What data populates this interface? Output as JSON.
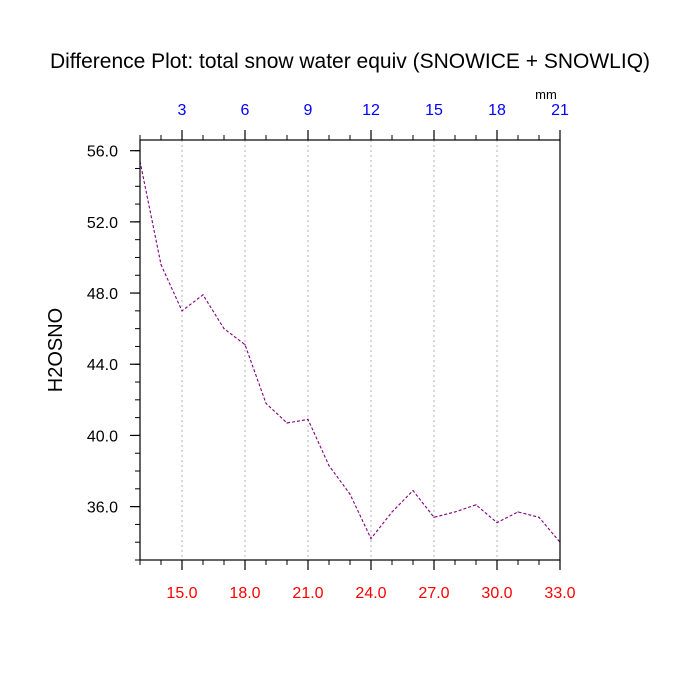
{
  "chart_data": {
    "type": "line",
    "title": "Difference Plot: total snow water equiv (SNOWICE + SNOWLIQ)",
    "ylabel": "H2OSNO",
    "top_axis_unit": "mm",
    "colors": {
      "line": "#800080",
      "bottom_ticks": "#ff0000",
      "top_ticks": "#0000ff",
      "grid": "#b0b0b0",
      "frame": "#000000"
    },
    "line_style": "dashed",
    "grid": "vertical dotted at major x ticks",
    "xlim": [
      13.0,
      33.0
    ],
    "ylim": [
      33.0,
      56.6
    ],
    "x_ticks_bottom": [
      "15.0",
      "18.0",
      "21.0",
      "24.0",
      "27.0",
      "30.0",
      "33.0"
    ],
    "x_ticks_bottom_values": [
      15,
      18,
      21,
      24,
      27,
      30,
      33
    ],
    "x_ticks_top": [
      "3",
      "6",
      "9",
      "12",
      "15",
      "18",
      "21"
    ],
    "x_ticks_top_values": [
      15,
      18,
      21,
      24,
      27,
      30,
      33
    ],
    "y_ticks": [
      "36.0",
      "40.0",
      "44.0",
      "48.0",
      "52.0",
      "56.0"
    ],
    "y_ticks_values": [
      36,
      40,
      44,
      48,
      52,
      56
    ],
    "series": [
      {
        "x": [
          13,
          14,
          15,
          16,
          17,
          18,
          19,
          20,
          21,
          22,
          23,
          24,
          25,
          26,
          27,
          28,
          29,
          30,
          31,
          32,
          33
        ],
        "values": [
          55.4,
          49.6,
          47.0,
          47.9,
          46.0,
          45.1,
          41.8,
          40.7,
          40.9,
          38.3,
          36.7,
          34.2,
          35.7,
          36.9,
          35.4,
          35.7,
          36.1,
          35.1,
          35.7,
          35.4,
          34.0
        ]
      }
    ]
  }
}
